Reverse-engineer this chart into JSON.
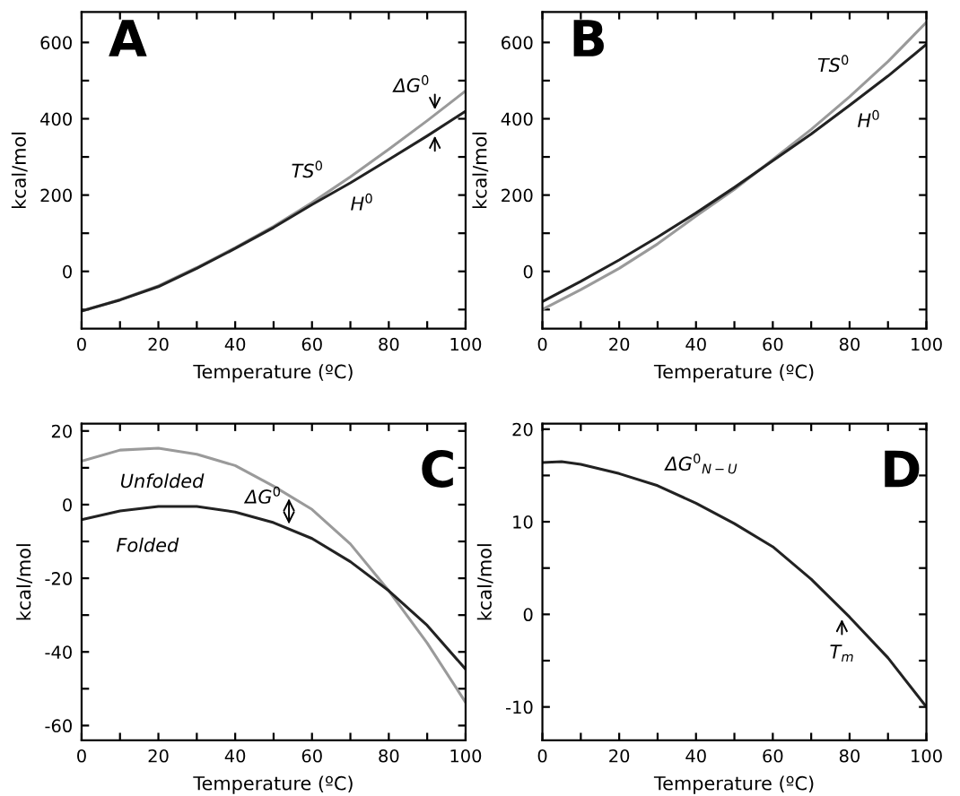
{
  "chart_data": [
    {
      "type": "line",
      "title": "A",
      "xlabel": "Temperature (ºC)",
      "ylabel": "kcal/mol",
      "x": [
        0,
        10,
        20,
        30,
        40,
        50,
        60,
        70,
        80,
        90,
        100
      ],
      "series": [
        {
          "name": "TS$^{0}$",
          "color": "#9a9a9a",
          "values": [
            -104,
            -74,
            -38,
            10,
            62,
            118,
            180,
            248,
            320,
            395,
            473
          ]
        },
        {
          "name": "H$^{0}$",
          "color": "#222222",
          "values": [
            -104,
            -75,
            -40,
            8,
            60,
            115,
            175,
            232,
            293,
            355,
            420
          ]
        }
      ],
      "annotations": [
        {
          "text": "ΔG$^{0}$",
          "x": 92,
          "y": 411
        }
      ],
      "xlim": [
        0,
        100
      ],
      "ylim": [
        -150,
        680
      ],
      "xticks": [
        0,
        {
          "value": 10,
          "label": null
        },
        20,
        {
          "value": 30,
          "label": null
        },
        40,
        {
          "value": 50,
          "label": null
        },
        60,
        {
          "value": 70,
          "label": null
        },
        80,
        {
          "value": 90,
          "label": null
        },
        100
      ],
      "yticks": [
        {
          "value": -100,
          "label": null
        },
        0,
        {
          "value": 100,
          "label": null
        },
        200,
        {
          "value": 300,
          "label": null
        },
        400,
        {
          "value": 500,
          "label": null
        },
        600
      ],
      "grid": false,
      "legend": false
    },
    {
      "type": "line",
      "title": "B",
      "xlabel": "Temperature (ºC)",
      "ylabel": "kcal/mol",
      "x": [
        0,
        10,
        20,
        30,
        40,
        50,
        60,
        70,
        80,
        90,
        100
      ],
      "series": [
        {
          "name": "TS$^{0}$",
          "color": "#9a9a9a",
          "values": [
            -100,
            -48,
            8,
            72,
            145,
            215,
            293,
            372,
            458,
            550,
            653
          ]
        },
        {
          "name": "H$^{0}$",
          "color": "#222222",
          "values": [
            -79,
            -26,
            30,
            90,
            153,
            220,
            290,
            360,
            435,
            512,
            595
          ]
        }
      ],
      "xlim": [
        0,
        100
      ],
      "ylim": [
        -150,
        680
      ],
      "xticks": [
        0,
        {
          "value": 10,
          "label": null
        },
        20,
        {
          "value": 30,
          "label": null
        },
        40,
        {
          "value": 50,
          "label": null
        },
        60,
        {
          "value": 70,
          "label": null
        },
        80,
        {
          "value": 90,
          "label": null
        },
        100
      ],
      "yticks": [
        {
          "value": -100,
          "label": null
        },
        0,
        {
          "value": 100,
          "label": null
        },
        200,
        {
          "value": 300,
          "label": null
        },
        400,
        {
          "value": 500,
          "label": null
        },
        600
      ],
      "grid": false,
      "legend": false
    },
    {
      "type": "line",
      "title": "C",
      "xlabel": "Temperature (ºC)",
      "ylabel": "kcal/mol",
      "x": [
        0,
        10,
        20,
        30,
        40,
        50,
        60,
        70,
        80,
        90,
        100
      ],
      "series": [
        {
          "name": "Unfolded",
          "color": "#9a9a9a",
          "values": [
            11.8,
            14.8,
            15.3,
            13.7,
            10.6,
            5,
            -1.3,
            -10.7,
            -23.4,
            -37.6,
            -53.7
          ]
        },
        {
          "name": "Folded",
          "color": "#222222",
          "values": [
            -4.1,
            -1.7,
            -0.5,
            -0.5,
            -2,
            -4.9,
            -9.2,
            -15.5,
            -23.4,
            -32.8,
            -44.7
          ]
        }
      ],
      "annotations": [
        {
          "text": "ΔG$^{0}$",
          "x": 54,
          "y": 3
        }
      ],
      "xlim": [
        0,
        100
      ],
      "ylim": [
        -64,
        22
      ],
      "xticks": [
        0,
        {
          "value": 10,
          "label": null
        },
        20,
        {
          "value": 30,
          "label": null
        },
        40,
        {
          "value": 50,
          "label": null
        },
        60,
        {
          "value": 70,
          "label": null
        },
        80,
        {
          "value": 90,
          "label": null
        },
        100
      ],
      "yticks": [
        -60,
        {
          "value": -50,
          "label": null
        },
        -40,
        {
          "value": -30,
          "label": null
        },
        -20,
        {
          "value": -10,
          "label": null
        },
        0,
        {
          "value": 10,
          "label": null
        },
        20
      ],
      "grid": false,
      "legend": false
    },
    {
      "type": "line",
      "title": "D",
      "xlabel": "Temperature (ºC)",
      "ylabel": "kcal/mol",
      "x": [
        0,
        5,
        10,
        20,
        30,
        40,
        50,
        60,
        70,
        80,
        90,
        100
      ],
      "series": [
        {
          "name": "ΔG$^{0}$$_{N−U}$",
          "color": "#222222",
          "values": [
            16.4,
            16.5,
            16.2,
            15.2,
            13.9,
            12,
            9.8,
            7.3,
            3.8,
            -0.3,
            -4.7,
            -10
          ]
        }
      ],
      "annotations": [
        {
          "text": "T$_{m}$",
          "x": 78,
          "y": 0
        }
      ],
      "xlim": [
        0,
        100
      ],
      "ylim": [
        -13.6,
        20.6
      ],
      "xticks": [
        0,
        {
          "value": 10,
          "label": null
        },
        20,
        {
          "value": 30,
          "label": null
        },
        40,
        {
          "value": 50,
          "label": null
        },
        60,
        {
          "value": 70,
          "label": null
        },
        80,
        {
          "value": 90,
          "label": null
        },
        100
      ],
      "yticks": [
        -10,
        {
          "value": -5,
          "label": null
        },
        0,
        {
          "value": 5,
          "label": null
        },
        10,
        {
          "value": 15,
          "label": null
        },
        20
      ],
      "grid": false,
      "legend": false
    }
  ]
}
